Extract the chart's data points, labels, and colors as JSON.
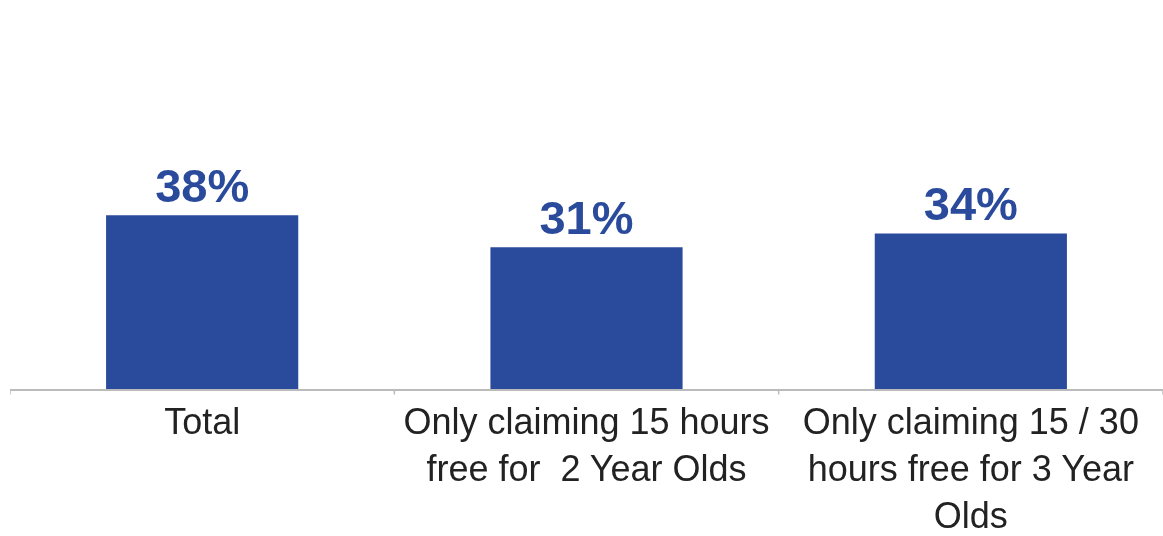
{
  "chart_data": {
    "type": "bar",
    "categories": [
      "Total",
      "Only claiming 15 hours free for  2 Year Olds",
      "Only claiming 15 / 30 hours free for 3 Year Olds"
    ],
    "values": [
      38,
      31,
      34
    ],
    "value_labels": [
      "38%",
      "31%",
      "34%"
    ],
    "color": "#2a4a9c",
    "tick_labels": "x"
  }
}
